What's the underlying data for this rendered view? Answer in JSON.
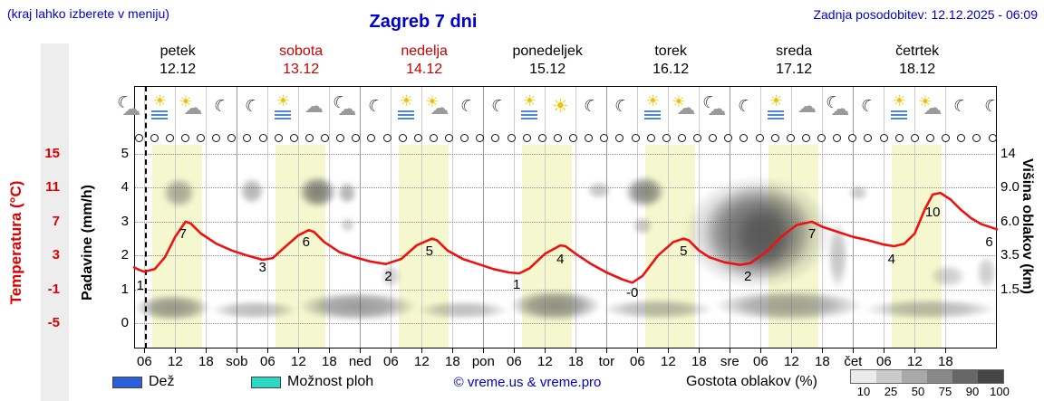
{
  "header": {
    "hint": "(kraj lahko izberete v meniju)",
    "title": "Zagreb 7 dni",
    "updated": "Zadnja posodobitev: 12.12.2025 - 06:09"
  },
  "axes": {
    "temp_label": "Temperatura (°C)",
    "precip_label": "Padavine (mm/h)",
    "cloud_label": "Višina oblakov (km)"
  },
  "legend": {
    "rain_label": "Dež",
    "showers_label": "Možnost ploh",
    "copyright": "© vreme.us & vreme.pro",
    "cloud_density_label": "Gostota oblakov (%)",
    "density_steps": [
      "10",
      "25",
      "50",
      "75",
      "90",
      "100"
    ]
  },
  "colors": {
    "blue_text": "#0000cc",
    "temp_line": "#ee1111",
    "temp_axis": "#dd0000",
    "rain_swatch": "#2b5fd9",
    "showers_swatch": "#2ed9c3",
    "day_band": "#f5f8cf",
    "weekend_red": "#cc0000",
    "cloud_gray": "#555555"
  },
  "chart_data": {
    "type": "meteogram",
    "title": "Zagreb 7 dni",
    "time_axis": {
      "start": "petek 12.12 04:00",
      "hours": 168,
      "tick_step_h": 6
    },
    "temp_axis": {
      "unit": "°C",
      "ticks": [
        15,
        11,
        7,
        3,
        -1,
        -5
      ],
      "min": -5,
      "max": 15
    },
    "precip_axis": {
      "unit": "mm/h",
      "ticks": [
        5,
        4,
        3,
        2,
        1,
        0
      ]
    },
    "cloud_axis": {
      "unit": "km",
      "tick_labels": [
        "14",
        "9.0",
        "6.0",
        "3.5",
        "1.5"
      ],
      "km_scale": [
        0,
        1.5,
        3.5,
        6,
        9,
        14
      ]
    },
    "days": [
      {
        "name": "petek",
        "date": "12.12",
        "weekend": false
      },
      {
        "name": "sobota",
        "date": "13.12",
        "weekend": true
      },
      {
        "name": "nedelja",
        "date": "14.12",
        "weekend": true
      },
      {
        "name": "ponedeljek",
        "date": "15.12",
        "weekend": false
      },
      {
        "name": "torek",
        "date": "16.12",
        "weekend": false
      },
      {
        "name": "sreda",
        "date": "17.12",
        "weekend": false
      },
      {
        "name": "četrtek",
        "date": "18.12",
        "weekend": false
      }
    ],
    "x_ticks": [
      {
        "t": 2,
        "label": "06"
      },
      {
        "t": 8,
        "label": "12"
      },
      {
        "t": 14,
        "label": "18"
      },
      {
        "t": 20,
        "label": "sob"
      },
      {
        "t": 26,
        "label": "06"
      },
      {
        "t": 32,
        "label": "12"
      },
      {
        "t": 38,
        "label": "18"
      },
      {
        "t": 44,
        "label": "ned"
      },
      {
        "t": 50,
        "label": "06"
      },
      {
        "t": 56,
        "label": "12"
      },
      {
        "t": 62,
        "label": "18"
      },
      {
        "t": 68,
        "label": "pon"
      },
      {
        "t": 74,
        "label": "06"
      },
      {
        "t": 80,
        "label": "12"
      },
      {
        "t": 86,
        "label": "18"
      },
      {
        "t": 92,
        "label": "tor"
      },
      {
        "t": 98,
        "label": "06"
      },
      {
        "t": 104,
        "label": "12"
      },
      {
        "t": 110,
        "label": "18"
      },
      {
        "t": 116,
        "label": "sre"
      },
      {
        "t": 122,
        "label": "06"
      },
      {
        "t": 128,
        "label": "12"
      },
      {
        "t": 134,
        "label": "18"
      },
      {
        "t": 140,
        "label": "čet"
      },
      {
        "t": 146,
        "label": "06"
      },
      {
        "t": 152,
        "label": "12"
      },
      {
        "t": 158,
        "label": "18"
      }
    ],
    "now_t": 2.15,
    "daylight_bands": [
      [
        3.5,
        13.2
      ],
      [
        27.5,
        37.2
      ],
      [
        51.5,
        61.2
      ],
      [
        75.5,
        85.2
      ],
      [
        99.5,
        109.2
      ],
      [
        123.5,
        133.2
      ],
      [
        147.5,
        157.2
      ]
    ],
    "temperature": {
      "unit": "°C",
      "points": [
        [
          0,
          1.6
        ],
        [
          1,
          1.3
        ],
        [
          2,
          1.1
        ],
        [
          4,
          1.4
        ],
        [
          6,
          2.8
        ],
        [
          8,
          5.2
        ],
        [
          10,
          7
        ],
        [
          11,
          6.8
        ],
        [
          13,
          5.6
        ],
        [
          16,
          4.4
        ],
        [
          19,
          3.6
        ],
        [
          22,
          3
        ],
        [
          25,
          2.5
        ],
        [
          27,
          2.7
        ],
        [
          29,
          3.8
        ],
        [
          32,
          5.4
        ],
        [
          34,
          6
        ],
        [
          35,
          5.8
        ],
        [
          37,
          4.6
        ],
        [
          40,
          3.4
        ],
        [
          43,
          2.8
        ],
        [
          46,
          2.3
        ],
        [
          49,
          2
        ],
        [
          52,
          2.6
        ],
        [
          55,
          4.2
        ],
        [
          58,
          5
        ],
        [
          59,
          4.8
        ],
        [
          61,
          3.6
        ],
        [
          64,
          2.6
        ],
        [
          67,
          2
        ],
        [
          70,
          1.4
        ],
        [
          73,
          1
        ],
        [
          75,
          0.9
        ],
        [
          77,
          1.5
        ],
        [
          80,
          3.2
        ],
        [
          83,
          4.2
        ],
        [
          84,
          4.1
        ],
        [
          86,
          3.2
        ],
        [
          89,
          2
        ],
        [
          92,
          1
        ],
        [
          95,
          0.2
        ],
        [
          97,
          -0.2
        ],
        [
          99,
          0.6
        ],
        [
          102,
          3
        ],
        [
          105,
          4.6
        ],
        [
          107,
          5
        ],
        [
          108,
          4.8
        ],
        [
          110,
          3.6
        ],
        [
          112,
          2.8
        ],
        [
          115,
          2.2
        ],
        [
          118,
          1.9
        ],
        [
          120,
          2.1
        ],
        [
          123,
          3.4
        ],
        [
          126,
          5.2
        ],
        [
          129,
          6.6
        ],
        [
          132,
          7
        ],
        [
          134,
          6.4
        ],
        [
          137,
          5.8
        ],
        [
          140,
          5.2
        ],
        [
          143,
          4.8
        ],
        [
          146,
          4.3
        ],
        [
          148,
          4.1
        ],
        [
          150,
          4.4
        ],
        [
          152,
          5.6
        ],
        [
          154,
          8.5
        ],
        [
          155.5,
          10.2
        ],
        [
          157,
          10.4
        ],
        [
          159,
          9.6
        ],
        [
          161,
          8.4
        ],
        [
          163,
          7.4
        ],
        [
          165,
          6.7
        ],
        [
          168,
          6.1
        ]
      ]
    },
    "temp_labels": [
      {
        "t": 1.2,
        "v": "1",
        "dy": 14
      },
      {
        "t": 9.5,
        "v": "7",
        "dy": 13
      },
      {
        "t": 25,
        "v": "3",
        "dy": 13
      },
      {
        "t": 33.5,
        "v": "6",
        "dy": 13
      },
      {
        "t": 49.5,
        "v": "2",
        "dy": 13
      },
      {
        "t": 57.5,
        "v": "5",
        "dy": 13
      },
      {
        "t": 74.5,
        "v": "1",
        "dy": 13
      },
      {
        "t": 83,
        "v": "4",
        "dy": 13
      },
      {
        "t": 97,
        "v": "-0",
        "dy": 13
      },
      {
        "t": 107,
        "v": "5",
        "dy": 13
      },
      {
        "t": 119.5,
        "v": "2",
        "dy": 13
      },
      {
        "t": 132,
        "v": "7",
        "dy": 13
      },
      {
        "t": 147.5,
        "v": "4",
        "dy": 13
      },
      {
        "t": 155.5,
        "v": "10",
        "dy": 17
      },
      {
        "t": 166.5,
        "v": "6",
        "dy": 13
      }
    ],
    "icons": [
      {
        "t": -1,
        "type": "cloud-moon"
      },
      {
        "t": 5,
        "type": "sun-fog"
      },
      {
        "t": 11,
        "type": "sun-cloud"
      },
      {
        "t": 17,
        "type": "moon"
      },
      {
        "t": 23,
        "type": "moon"
      },
      {
        "t": 29,
        "type": "sun-fog"
      },
      {
        "t": 35,
        "type": "cloud"
      },
      {
        "t": 41,
        "type": "cloud-moon"
      },
      {
        "t": 47,
        "type": "moon"
      },
      {
        "t": 53,
        "type": "sun-fog"
      },
      {
        "t": 59,
        "type": "sun-cloud"
      },
      {
        "t": 65,
        "type": "moon"
      },
      {
        "t": 71,
        "type": "moon"
      },
      {
        "t": 77,
        "type": "sun-fog"
      },
      {
        "t": 83,
        "type": "sun"
      },
      {
        "t": 89,
        "type": "moon"
      },
      {
        "t": 95,
        "type": "moon"
      },
      {
        "t": 101,
        "type": "sun-fog"
      },
      {
        "t": 107,
        "type": "sun-cloud"
      },
      {
        "t": 113,
        "type": "cloud-moon"
      },
      {
        "t": 119,
        "type": "moon"
      },
      {
        "t": 125,
        "type": "sun-fog"
      },
      {
        "t": 131,
        "type": "cloud"
      },
      {
        "t": 137,
        "type": "cloud-moon"
      },
      {
        "t": 143,
        "type": "moon"
      },
      {
        "t": 149,
        "type": "sun-fog"
      },
      {
        "t": 155,
        "type": "sun-cloud"
      },
      {
        "t": 161,
        "type": "moon"
      },
      {
        "t": 167,
        "type": "moon"
      }
    ],
    "symbol_circles": {
      "count": 56,
      "row_y": 152
    },
    "clouds": [
      {
        "t0": 0,
        "t1": 15,
        "km0": 0.1,
        "km1": 1.3,
        "o": 0.6
      },
      {
        "t0": 15,
        "t1": 32,
        "km0": 0.15,
        "km1": 1.0,
        "o": 0.4
      },
      {
        "t0": 32,
        "t1": 55,
        "km0": 0.1,
        "km1": 1.4,
        "o": 0.6
      },
      {
        "t0": 55,
        "t1": 73,
        "km0": 0.15,
        "km1": 1.0,
        "o": 0.38
      },
      {
        "t0": 73,
        "t1": 91,
        "km0": 0.1,
        "km1": 1.5,
        "o": 0.65
      },
      {
        "t0": 91,
        "t1": 113,
        "km0": 0.15,
        "km1": 1.1,
        "o": 0.42
      },
      {
        "t0": 113,
        "t1": 142,
        "km0": 0.1,
        "km1": 1.5,
        "o": 0.55
      },
      {
        "t0": 142,
        "t1": 168,
        "km0": 0.15,
        "km1": 1.1,
        "o": 0.42
      },
      {
        "t0": 5.5,
        "t1": 12,
        "km0": 7.2,
        "km1": 10.5,
        "o": 0.5
      },
      {
        "t0": 20.5,
        "t1": 25.5,
        "km0": 7.5,
        "km1": 10.5,
        "o": 0.45
      },
      {
        "t0": 32,
        "t1": 39.5,
        "km0": 7.2,
        "km1": 10.8,
        "o": 0.75
      },
      {
        "t0": 39.5,
        "t1": 43.5,
        "km0": 7.5,
        "km1": 10,
        "o": 0.45
      },
      {
        "t0": 40,
        "t1": 43,
        "km0": 5.2,
        "km1": 6.4,
        "o": 0.3
      },
      {
        "t0": 48,
        "t1": 52,
        "km0": 1.6,
        "km1": 3,
        "o": 0.28
      },
      {
        "t0": 88,
        "t1": 93,
        "km0": 8,
        "km1": 10,
        "o": 0.35
      },
      {
        "t0": 95.5,
        "t1": 103.5,
        "km0": 7.2,
        "km1": 10.8,
        "o": 0.7
      },
      {
        "t0": 97,
        "t1": 101,
        "km0": 5,
        "km1": 6.5,
        "o": 0.35
      },
      {
        "t0": 107,
        "t1": 136,
        "km0": 1.5,
        "km1": 10.8,
        "o": 0.5
      },
      {
        "t0": 111,
        "t1": 132,
        "km0": 2,
        "km1": 9.5,
        "o": 0.75
      },
      {
        "t0": 117,
        "t1": 128,
        "km0": 2.8,
        "km1": 7.5,
        "o": 0.85
      },
      {
        "t0": 135,
        "t1": 139,
        "km0": 1.5,
        "km1": 6,
        "o": 0.35
      },
      {
        "t0": 139,
        "t1": 143,
        "km0": 7.8,
        "km1": 9.5,
        "o": 0.32
      },
      {
        "t0": 155,
        "t1": 162,
        "km0": 1.6,
        "km1": 3,
        "o": 0.3
      },
      {
        "t0": 164,
        "t1": 168,
        "km0": 1.5,
        "km1": 3.5,
        "o": 0.3
      }
    ]
  }
}
